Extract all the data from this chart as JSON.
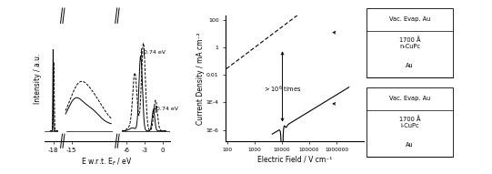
{
  "fig_width": 5.41,
  "fig_height": 1.91,
  "dpi": 100,
  "panel1": {
    "xlabel": "E w.r.t. E$_F$ / eV",
    "ylabel": "Intensity / a.u.",
    "annotation1": "0.74 eV",
    "annotation2": "0.74 eV"
  },
  "panel2": {
    "xlabel": "Electric Field / V cm⁻¹",
    "ylabel": "Current Density / mA cm⁻²",
    "annotation": "> 10$^6$ times",
    "legend1": [
      "Vac. Evap. Au",
      "1700 Å",
      "n-CuPc",
      "Au"
    ],
    "legend2": [
      "Vac. Evap. Au",
      "1700 Å",
      "i-CuPc",
      "Au"
    ]
  }
}
